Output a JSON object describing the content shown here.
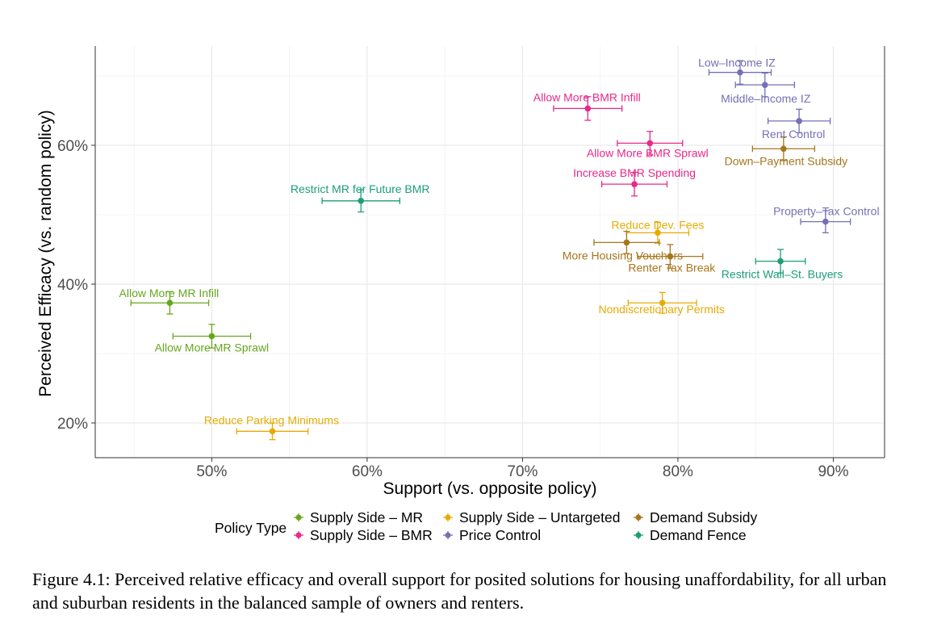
{
  "chart_data": {
    "type": "scatter",
    "xlabel": "Support (vs. opposite policy)",
    "ylabel": "Perceived Efficacy (vs. random policy)",
    "xlim": [
      42.5,
      93.3
    ],
    "ylim": [
      15.0,
      74.3
    ],
    "x_ticks": [
      50,
      60,
      70,
      80,
      90
    ],
    "x_tick_labels": [
      "50%",
      "60%",
      "70%",
      "80%",
      "90%"
    ],
    "y_ticks": [
      20,
      40,
      60
    ],
    "y_tick_labels": [
      "20%",
      "40%",
      "60%"
    ],
    "grid": true,
    "legend_title": "Policy Type",
    "legend_position": "bottom",
    "series": [
      {
        "name": "Supply Side – MR",
        "color": "#66a61e",
        "points": [
          {
            "label": "Allow More MR Infill",
            "x": 47.3,
            "y": 37.3,
            "x_err": [
              44.8,
              49.8
            ],
            "y_err": [
              35.7,
              38.9
            ]
          },
          {
            "label": "Allow More MR Sprawl",
            "x": 50.0,
            "y": 32.5,
            "x_err": [
              47.5,
              52.5
            ],
            "y_err": [
              30.8,
              34.2
            ]
          }
        ]
      },
      {
        "name": "Supply Side – BMR",
        "color": "#e7298a",
        "points": [
          {
            "label": "Allow More BMR Infill",
            "x": 74.2,
            "y": 65.3,
            "x_err": [
              72.0,
              76.4
            ],
            "y_err": [
              63.6,
              67.0
            ]
          },
          {
            "label": "Allow More BMR Sprawl",
            "x": 78.2,
            "y": 60.3,
            "x_err": [
              76.1,
              80.3
            ],
            "y_err": [
              58.6,
              62.0
            ]
          },
          {
            "label": "Increase BMR Spending",
            "x": 77.2,
            "y": 54.4,
            "x_err": [
              75.1,
              79.3
            ],
            "y_err": [
              52.7,
              56.1
            ]
          }
        ]
      },
      {
        "name": "Supply Side – Untargeted",
        "color": "#e6ab02",
        "points": [
          {
            "label": "Reduce Parking Minimums",
            "x": 53.9,
            "y": 18.8,
            "x_err": [
              51.6,
              56.2
            ],
            "y_err": [
              17.6,
              20.0
            ]
          },
          {
            "label": "Reduce Dev. Fees",
            "x": 78.7,
            "y": 47.4,
            "x_err": [
              76.7,
              80.7
            ],
            "y_err": [
              45.9,
              48.9
            ]
          },
          {
            "label": "Nondiscretionary Permits",
            "x": 79.0,
            "y": 37.3,
            "x_err": [
              76.8,
              81.2
            ],
            "y_err": [
              35.8,
              38.8
            ]
          }
        ]
      },
      {
        "name": "Demand Subsidy",
        "color": "#a6761d",
        "points": [
          {
            "label": "More Housing Vouchers",
            "x": 76.7,
            "y": 46.0,
            "x_err": [
              74.6,
              78.8
            ],
            "y_err": [
              44.4,
              47.6
            ]
          },
          {
            "label": "Renter Tax Break",
            "x": 79.5,
            "y": 44.0,
            "x_err": [
              77.4,
              81.6
            ],
            "y_err": [
              42.3,
              45.7
            ]
          },
          {
            "label": "Down–Payment Subsidy",
            "x": 86.8,
            "y": 59.5,
            "x_err": [
              84.8,
              88.8
            ],
            "y_err": [
              57.8,
              61.2
            ]
          }
        ]
      },
      {
        "name": "Price Control",
        "color": "#7570b3",
        "points": [
          {
            "label": "Low–Income IZ",
            "x": 84.0,
            "y": 70.5,
            "x_err": [
              82.0,
              86.0
            ],
            "y_err": [
              68.8,
              72.2
            ]
          },
          {
            "label": "Middle–Income IZ",
            "x": 85.6,
            "y": 68.7,
            "x_err": [
              83.7,
              87.5
            ],
            "y_err": [
              67.0,
              70.4
            ]
          },
          {
            "label": "Rent Control",
            "x": 87.8,
            "y": 63.5,
            "x_err": [
              85.8,
              89.8
            ],
            "y_err": [
              61.8,
              65.2
            ]
          },
          {
            "label": "Property–Tax Control",
            "x": 89.5,
            "y": 49.0,
            "x_err": [
              87.9,
              91.1
            ],
            "y_err": [
              47.4,
              50.6
            ]
          }
        ]
      },
      {
        "name": "Demand Fence",
        "color": "#1b9e77",
        "points": [
          {
            "label": "Restrict MR for Future BMR",
            "x": 59.6,
            "y": 52.0,
            "x_err": [
              57.1,
              62.1
            ],
            "y_err": [
              50.4,
              53.6
            ]
          },
          {
            "label": "Restrict Wall–St. Buyers",
            "x": 86.6,
            "y": 43.3,
            "x_err": [
              85.0,
              88.2
            ],
            "y_err": [
              41.6,
              45.0
            ]
          }
        ]
      }
    ]
  },
  "legend": {
    "title": "Policy Type",
    "items": [
      {
        "name": "Supply Side – MR",
        "color": "#66a61e"
      },
      {
        "name": "Supply Side – BMR",
        "color": "#e7298a"
      },
      {
        "name": "Supply Side – Untargeted",
        "color": "#e6ab02"
      },
      {
        "name": "Price Control",
        "color": "#7570b3"
      },
      {
        "name": "Demand Subsidy",
        "color": "#a6761d"
      },
      {
        "name": "Demand Fence",
        "color": "#1b9e77"
      }
    ]
  },
  "caption": "Figure 4.1: Perceived relative efficacy and overall support for posited solutions for housing unaffordability, for all urban and suburban residents in the balanced sample of owners and renters."
}
